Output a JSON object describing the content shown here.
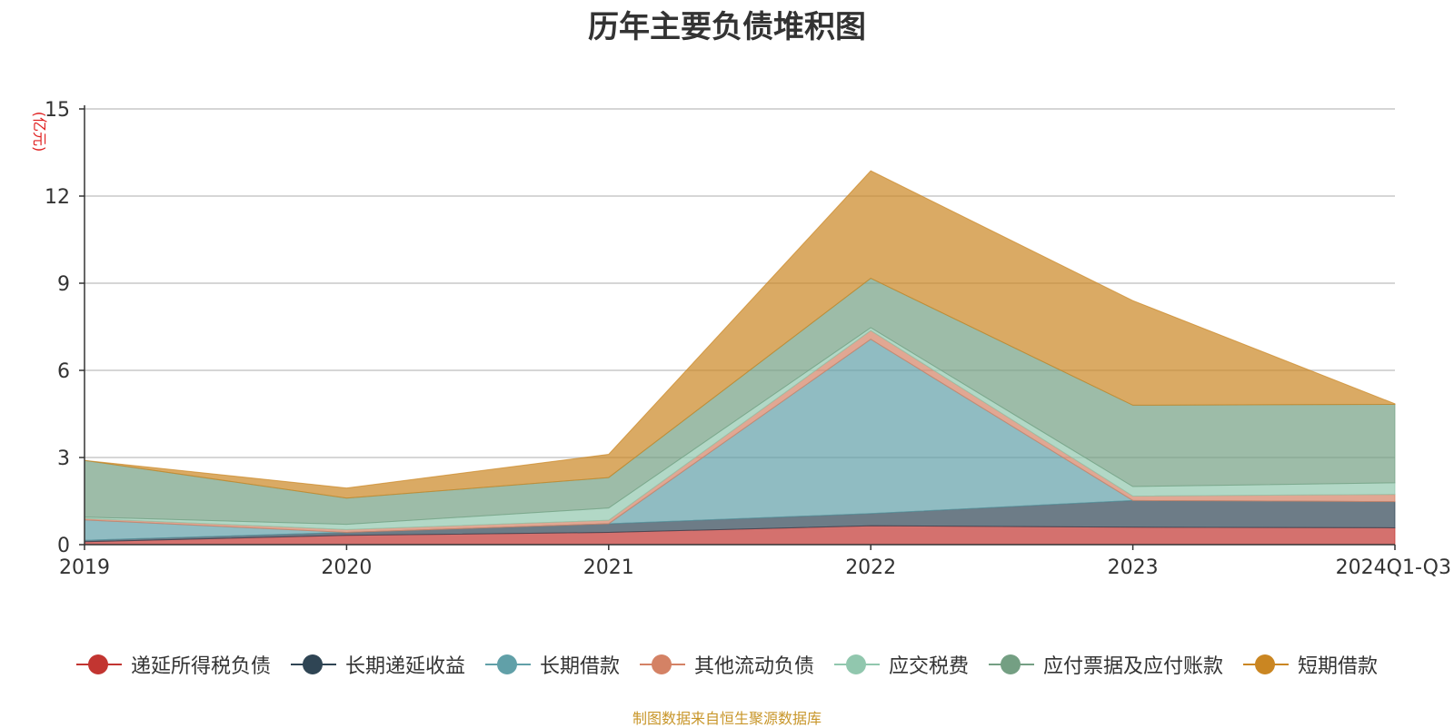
{
  "title": "历年主要负债堆积图",
  "source_note": "制图数据来自恒生聚源数据库",
  "chart_data": {
    "type": "area",
    "stacked": true,
    "title": "历年主要负债堆积图",
    "ylabel": "(亿元)",
    "xlabel": "",
    "categories": [
      "2019",
      "2020",
      "2021",
      "2022",
      "2023",
      "2024Q1-Q3"
    ],
    "ylim": [
      0,
      15
    ],
    "yticks": [
      0,
      3,
      6,
      9,
      12,
      15
    ],
    "grid": true,
    "legend_position": "bottom",
    "series": [
      {
        "name": "递延所得税负债",
        "color": "#c23531",
        "values": [
          0.1,
          0.32,
          0.42,
          0.65,
          0.6,
          0.58
        ]
      },
      {
        "name": "长期递延收益",
        "color": "#2f4554",
        "values": [
          0.05,
          0.1,
          0.3,
          0.42,
          0.92,
          0.9
        ]
      },
      {
        "name": "长期借款",
        "color": "#61a0a8",
        "values": [
          0.7,
          0.0,
          0.0,
          6.0,
          0.0,
          0.0
        ]
      },
      {
        "name": "其他流动负债",
        "color": "#d48265",
        "values": [
          0.05,
          0.1,
          0.12,
          0.3,
          0.15,
          0.25
        ]
      },
      {
        "name": "应交税费",
        "color": "#91c7ae",
        "values": [
          0.05,
          0.18,
          0.42,
          0.1,
          0.33,
          0.4
        ]
      },
      {
        "name": "应付票据及应付账款",
        "color": "#749f83",
        "values": [
          1.95,
          0.9,
          1.05,
          1.7,
          2.8,
          2.7
        ]
      },
      {
        "name": "短期借款",
        "color": "#ca8622",
        "values": [
          0.0,
          0.35,
          0.8,
          3.7,
          3.6,
          0.02
        ]
      }
    ]
  }
}
